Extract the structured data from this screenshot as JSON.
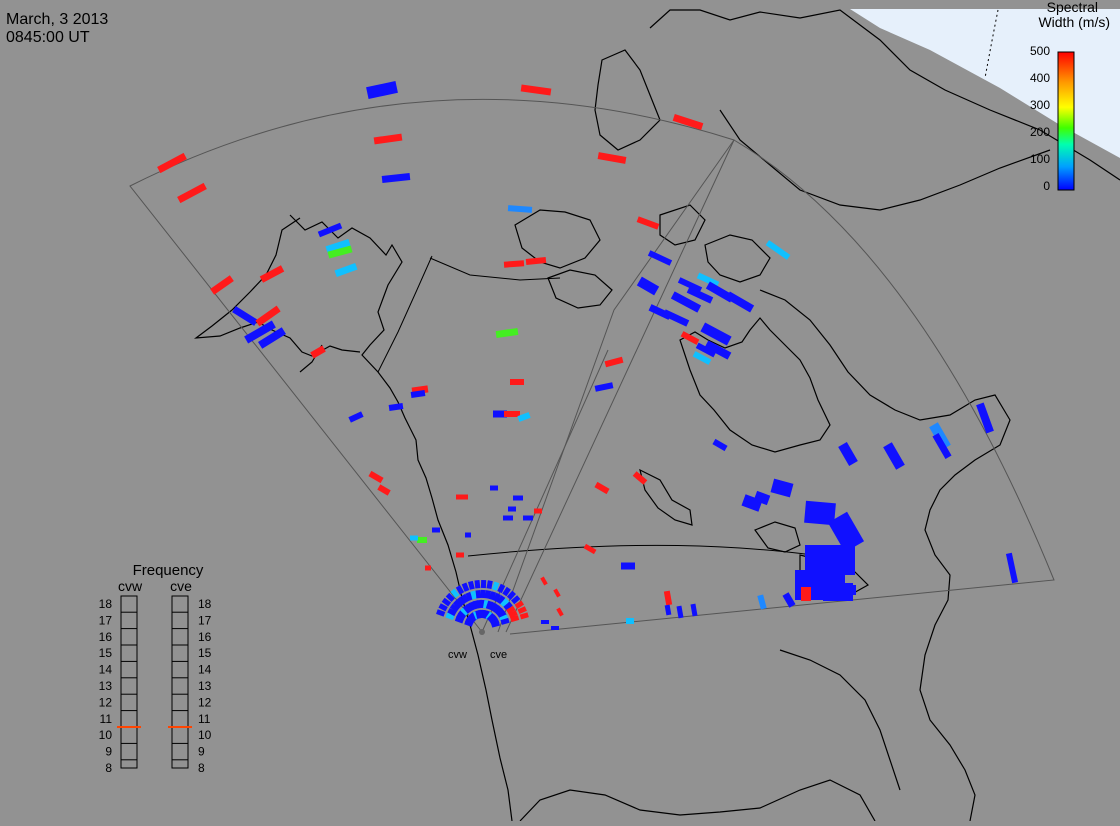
{
  "header": {
    "date": "March, 3 2013",
    "time": "0845:00 UT"
  },
  "legend": {
    "title_line1": "Spectral",
    "title_line2": "Width (m/s)",
    "ticks": [
      "500",
      "400",
      "300",
      "200",
      "100",
      "0"
    ],
    "colors": [
      "#0000ff",
      "#00a0ff",
      "#00ffb0",
      "#40ff00",
      "#ffff00",
      "#ff9900",
      "#ff0000"
    ]
  },
  "frequency_panel": {
    "title": "Frequency",
    "radars": [
      {
        "label": "cvw",
        "value": 10.5
      },
      {
        "label": "cve",
        "value": 10.5
      }
    ],
    "scale": [
      "18",
      "17",
      "16",
      "15",
      "14",
      "13",
      "12",
      "11",
      "10",
      "9",
      "8"
    ],
    "marker_color": "#ff4400"
  },
  "radar_site_labels": [
    "cvw",
    "cve"
  ],
  "map": {
    "background": "#929292",
    "ice_color": "#e6f0fb",
    "coastline_color": "#000000",
    "fov_outline_color": "#555555",
    "echo_colors": {
      "low": "#1010ff",
      "high": "#ff1a1a",
      "mid_green": "#44ee22",
      "cyan": "#10c0ff",
      "light_blue": "#1e88ff"
    }
  }
}
